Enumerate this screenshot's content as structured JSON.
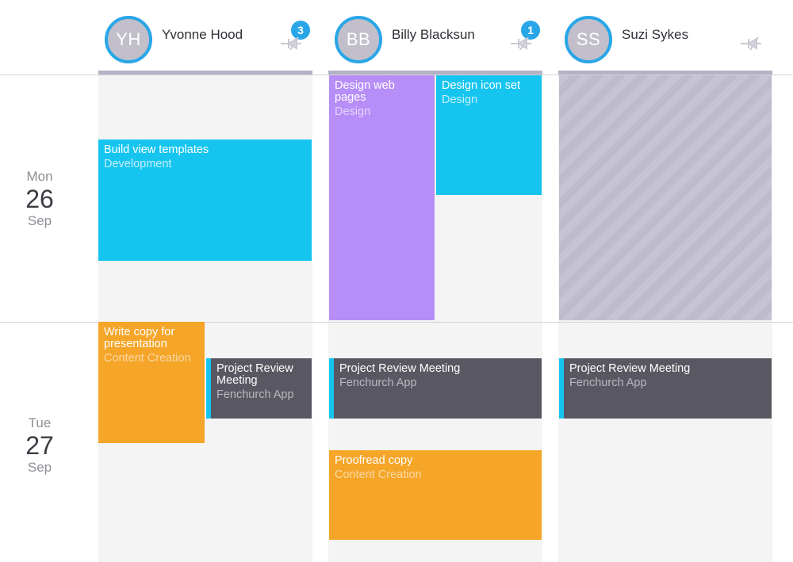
{
  "people": [
    {
      "initials": "YH",
      "name": "Yvonne Hood",
      "badge": "3"
    },
    {
      "initials": "BB",
      "name": "Billy Blacksun",
      "badge": "1"
    },
    {
      "initials": "SS",
      "name": "Suzi Sykes",
      "badge": null
    }
  ],
  "days": [
    {
      "dow": "Mon",
      "num": "26",
      "month": "Sep"
    },
    {
      "dow": "Tue",
      "num": "27",
      "month": "Sep"
    }
  ],
  "events": {
    "build_view_templates": {
      "title": "Build view templates",
      "category": "Development"
    },
    "design_web_pages": {
      "title": "Design web pages",
      "category": "Design"
    },
    "design_icon_set": {
      "title": "Design icon set",
      "category": "Design"
    },
    "write_copy": {
      "title": "Write copy for presentation",
      "category": "Content Creation"
    },
    "review_yh": {
      "title": "Project Review Meeting",
      "category": "Fenchurch App"
    },
    "review_bb": {
      "title": "Project Review Meeting",
      "category": "Fenchurch App"
    },
    "review_ss": {
      "title": "Project Review Meeting",
      "category": "Fenchurch App"
    },
    "proofread": {
      "title": "Proofread copy",
      "category": "Content Creation"
    }
  },
  "icons": {
    "unassign": "unassign-pin-icon"
  },
  "colors": {
    "development": "#15c5ef",
    "design_purple": "#b78ef7",
    "content": "#f5a527",
    "meeting": "#595862",
    "accent": "#29a6e8"
  }
}
